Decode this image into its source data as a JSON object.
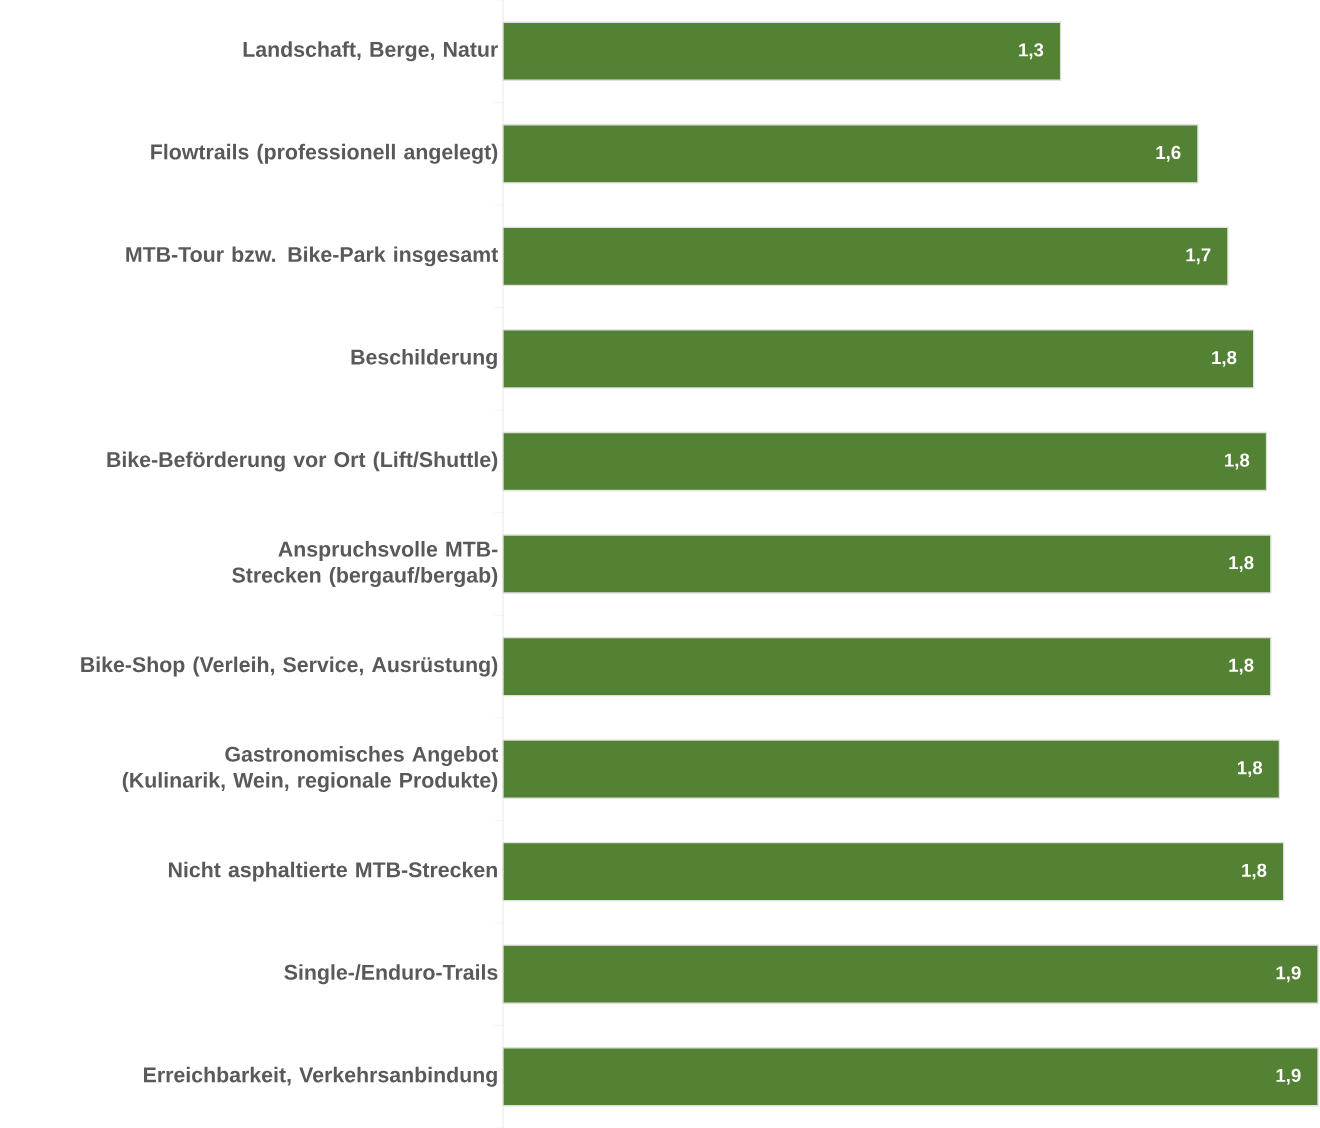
{
  "chart_data": {
    "type": "bar",
    "orientation": "horizontal",
    "color": "#548235",
    "categories": [
      "Landschaft, Berge, Natur",
      "Flowtrails (professionell angelegt)",
      "MTB-Tour bzw. Bike-Park insgesamt",
      "Beschilderung",
      "Bike-Beförderung vor Ort (Lift/Shuttle)",
      "Anspruchsvolle MTB-Strecken (bergauf/bergab)",
      "Bike-Shop (Verleih, Service, Ausrüstung)",
      "Gastronomisches Angebot (Kulinarik, Wein, regionale Produkte)",
      "Nicht asphaltierte MTB-Strecken",
      "Single-/Enduro-Trails",
      "Erreichbarkeit, Verkehrsanbindung"
    ],
    "values": [
      1.3,
      1.62,
      1.69,
      1.75,
      1.78,
      1.79,
      1.79,
      1.81,
      1.82,
      1.9,
      1.9
    ],
    "value_labels": [
      "1,3",
      "1,6",
      "1,7",
      "1,8",
      "1,8",
      "1,8",
      "1,8",
      "1,8",
      "1,8",
      "1,9",
      "1,9"
    ]
  }
}
